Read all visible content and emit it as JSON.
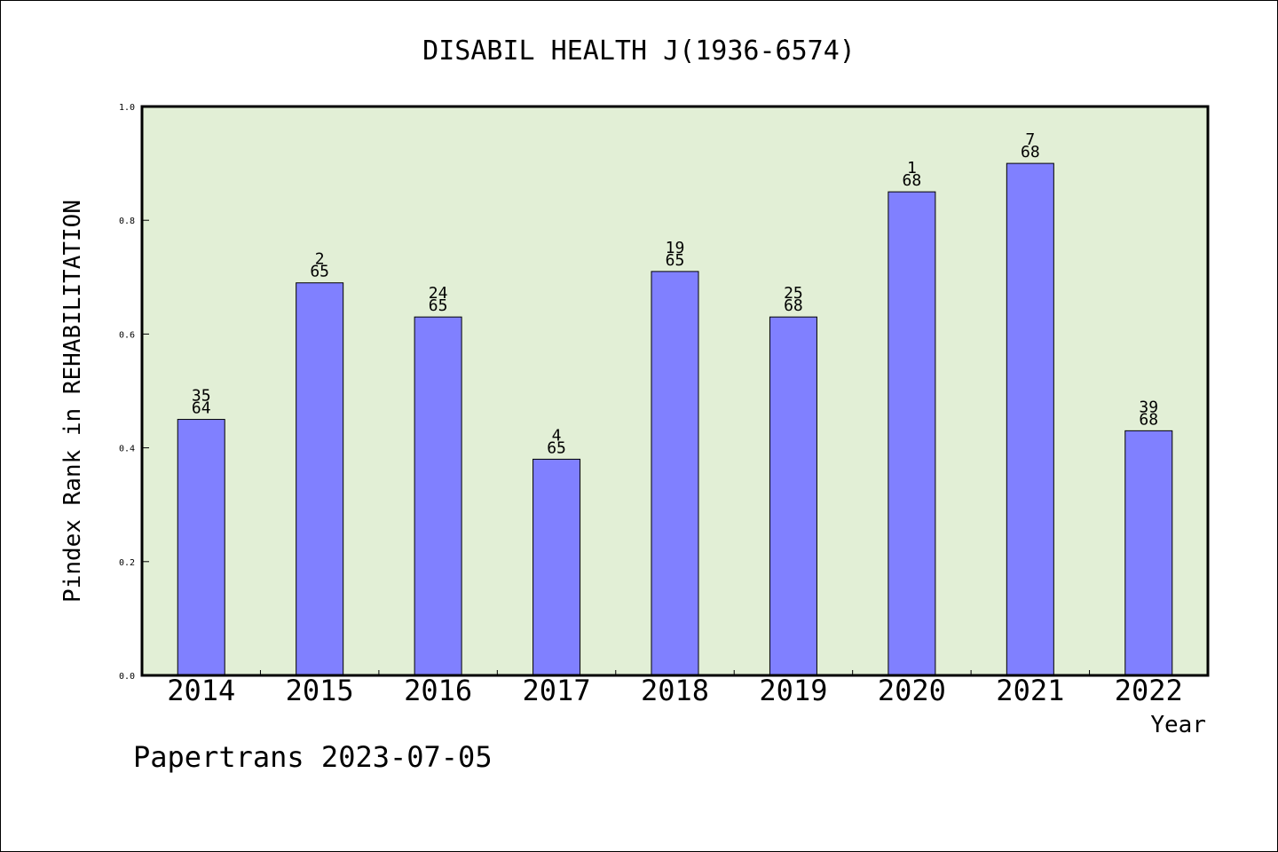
{
  "chart_data": {
    "type": "bar",
    "title": "DISABIL HEALTH J(1936-6574)",
    "xlabel": "Year",
    "ylabel": "Pindex Rank in REHABILITATION",
    "categories": [
      "2014",
      "2015",
      "2016",
      "2017",
      "2018",
      "2019",
      "2020",
      "2021",
      "2022"
    ],
    "values": [
      0.45,
      0.69,
      0.63,
      0.38,
      0.71,
      0.63,
      0.85,
      0.9,
      0.43
    ],
    "rank_labels": [
      {
        "rank": "35",
        "total": "64"
      },
      {
        "rank": "2",
        "total": "65"
      },
      {
        "rank": "24",
        "total": "65"
      },
      {
        "rank": "4",
        "total": "65"
      },
      {
        "rank": "19",
        "total": "65"
      },
      {
        "rank": "25",
        "total": "68"
      },
      {
        "rank": "1",
        "total": "68"
      },
      {
        "rank": "7",
        "total": "68"
      },
      {
        "rank": "39",
        "total": "68"
      }
    ],
    "ylim": [
      0,
      1.0
    ],
    "yticks": [
      "0.0",
      "0.2",
      "0.4",
      "0.6",
      "0.8",
      "1.0"
    ],
    "grid": false,
    "colors": {
      "bar_fill": "#8080ff",
      "plot_background": "#e2efd6",
      "axis": "#000000"
    }
  },
  "footer": {
    "credit": "Papertrans 2023-07-05"
  }
}
